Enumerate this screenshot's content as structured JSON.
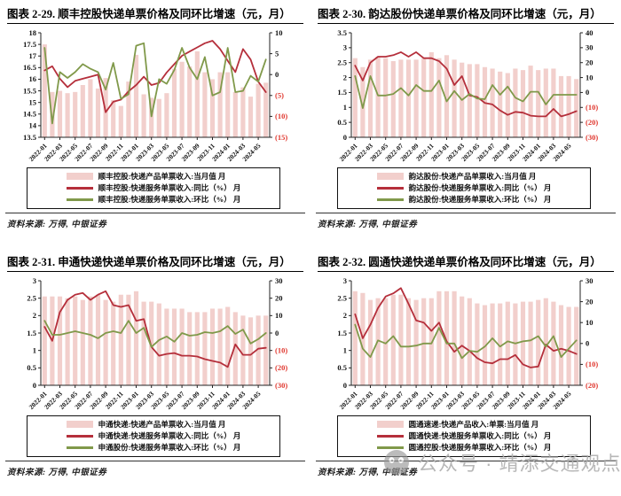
{
  "meta": {
    "page_type": "research-report-chart-grid",
    "colors": {
      "bar_fill": "#f2cfcc",
      "yoy_line": "#b52f3b",
      "mom_line": "#80994a",
      "negative_tick_label": "#e0372e",
      "axis": "#222222"
    }
  },
  "shared": {
    "x_start": "2022-01",
    "x_months": 30,
    "x_ticks": [
      {
        "i": 0,
        "t": "2022-01"
      },
      {
        "i": 2,
        "t": "2022-03"
      },
      {
        "i": 4,
        "t": "2022-05"
      },
      {
        "i": 6,
        "t": "2022-07"
      },
      {
        "i": 8,
        "t": "2022-09"
      },
      {
        "i": 10,
        "t": "2022-11"
      },
      {
        "i": 12,
        "t": "2023-01"
      },
      {
        "i": 14,
        "t": "2023-03"
      },
      {
        "i": 16,
        "t": "2023-05"
      },
      {
        "i": 18,
        "t": "2023-07"
      },
      {
        "i": 20,
        "t": "2023-09"
      },
      {
        "i": 22,
        "t": "2023-11"
      },
      {
        "i": 24,
        "t": "2024-01"
      },
      {
        "i": 26,
        "t": "2024-03"
      },
      {
        "i": 28,
        "t": "2024-05"
      }
    ]
  },
  "watermark": {
    "icon": "wechat-official-account-icon",
    "text": "公众号 · 靖添交通观点"
  },
  "chart_data": [
    {
      "type": "bar+line",
      "title": "图表 2-29. 顺丰控股快递单票价格及同环比增速（元，月）",
      "source": "资料来源: 万得, 中银证券",
      "x_start": "2022-01",
      "left_axis": {
        "min": 13.5,
        "max": 18,
        "ticks": [
          {
            "v": 13.5,
            "t": "13.5"
          },
          {
            "v": 14,
            "t": "14"
          },
          {
            "v": 14.5,
            "t": "14.5"
          },
          {
            "v": 15,
            "t": "15"
          },
          {
            "v": 15.5,
            "t": "15.5"
          },
          {
            "v": 16,
            "t": "16"
          },
          {
            "v": 16.5,
            "t": "16.5"
          },
          {
            "v": 17,
            "t": "17"
          },
          {
            "v": 17.5,
            "t": "17.5"
          },
          {
            "v": 18,
            "t": "18"
          }
        ]
      },
      "right_axis": {
        "min": -15,
        "max": 10,
        "ticks": [
          {
            "v": 10,
            "t": "10"
          },
          {
            "v": 5,
            "t": "5"
          },
          {
            "v": 0,
            "t": "0"
          },
          {
            "v": -5,
            "t": "(5)"
          },
          {
            "v": -10,
            "t": "(10)"
          },
          {
            "v": -15,
            "t": "(15)"
          }
        ]
      },
      "series": [
        {
          "name": "顺丰控股:快递产品单票收入:当月值 月",
          "type": "bar",
          "axis": "left",
          "color": "#f2cfcc",
          "values": [
            17.5,
            15.45,
            15.5,
            15.4,
            15.45,
            15.75,
            16.0,
            15.6,
            16.05,
            15.1,
            14.85,
            15.9,
            17.05,
            15.35,
            15.2,
            15.15,
            15.4,
            16.45,
            16.75,
            16.55,
            17.2,
            16.3,
            16.0,
            16.3,
            16.3,
            15.45,
            15.65,
            15.25,
            15.8,
            15.85
          ]
        },
        {
          "name": "顺丰控股:快递服务单票收入:同比（%） 月",
          "type": "line",
          "axis": "right",
          "color": "#b52f3b",
          "values": [
            1,
            2,
            -1,
            -3,
            -1.5,
            -1,
            -0.5,
            0,
            -9,
            -6.5,
            -6,
            -4,
            -2.5,
            -0.5,
            -2.5,
            -2,
            0.5,
            2.5,
            4.5,
            5.5,
            6.5,
            7.5,
            8.1,
            6.1,
            3.3,
            0.6,
            6.1,
            3.6,
            -1.7,
            -4.2
          ]
        },
        {
          "name": "顺丰控股:快递服务单票收入:环比（%） 月",
          "type": "line",
          "axis": "right",
          "color": "#80994a",
          "values": [
            6.4,
            -11.7,
            0.6,
            -0.8,
            0.6,
            2.5,
            1.4,
            0.6,
            -3.6,
            2.8,
            -5.8,
            -4.7,
            6.9,
            7.5,
            -10,
            -1.1,
            -2.2,
            1.1,
            6.4,
            1.7,
            -1.1,
            4.2,
            -5,
            -4.2,
            6.4,
            -4.2,
            -3.9,
            -0.3,
            -1.7,
            3.6
          ]
        }
      ]
    },
    {
      "type": "bar+line",
      "title": "图表 2-30. 韵达股份快递单票价格及同环比增速（元，月）",
      "source": "资料来源: 万得, 中银证券",
      "x_start": "2022-01",
      "left_axis": {
        "min": 0,
        "max": 3.5,
        "ticks": [
          {
            "v": 0,
            "t": "0"
          },
          {
            "v": 0.5,
            "t": "0.5"
          },
          {
            "v": 1,
            "t": "1"
          },
          {
            "v": 1.5,
            "t": "1.5"
          },
          {
            "v": 2,
            "t": "2"
          },
          {
            "v": 2.5,
            "t": "2.5"
          },
          {
            "v": 3,
            "t": "3"
          },
          {
            "v": 3.5,
            "t": "3.5"
          }
        ]
      },
      "right_axis": {
        "min": -30,
        "max": 40,
        "ticks": [
          {
            "v": 40,
            "t": "40"
          },
          {
            "v": 30,
            "t": "30"
          },
          {
            "v": 20,
            "t": "20"
          },
          {
            "v": 10,
            "t": "10"
          },
          {
            "v": 0,
            "t": "0"
          },
          {
            "v": -10,
            "t": "(10)"
          },
          {
            "v": -20,
            "t": "(20)"
          },
          {
            "v": -30,
            "t": "(30)"
          }
        ]
      },
      "series": [
        {
          "name": "韵达股份:快递产品单票收入:当月值 月",
          "type": "bar",
          "axis": "left",
          "color": "#f2cfcc",
          "values": [
            2.65,
            2.35,
            2.6,
            2.7,
            2.65,
            2.55,
            2.6,
            2.6,
            2.6,
            2.65,
            2.85,
            2.65,
            2.75,
            2.6,
            2.5,
            2.45,
            2.45,
            2.35,
            2.3,
            2.2,
            2.15,
            2.3,
            2.25,
            2.4,
            2.25,
            2.3,
            2.3,
            2.05,
            2.05,
            1.95
          ]
        },
        {
          "name": "韵达股份:快递服务单票收入:同比（%） 月",
          "type": "line",
          "axis": "right",
          "color": "#b52f3b",
          "values": [
            18,
            8,
            20,
            24,
            24,
            25,
            27,
            24,
            27,
            23,
            23,
            21,
            16,
            5,
            11,
            -2,
            -3,
            -7,
            -8,
            -12,
            -15,
            -13,
            -13.5,
            -15.5,
            -16,
            -16,
            -11,
            -16,
            -14.5,
            -12.5
          ]
        },
        {
          "name": "韵达股份:快递服务单票收入:环比（%） 月",
          "type": "line",
          "axis": "right",
          "color": "#80994a",
          "values": [
            11,
            -10.5,
            11,
            -2,
            -2,
            -1,
            3,
            -2,
            5,
            1,
            1,
            8,
            -6,
            1,
            -5,
            -1,
            -4,
            -4.5,
            5,
            -1.5,
            4,
            -3.5,
            -6,
            0.5,
            0.5,
            -8,
            -1.5,
            -1.5,
            -1.5,
            -1.5
          ]
        }
      ]
    },
    {
      "type": "bar+line",
      "title": "图表 2-31. 申通快递快递单票价格及同环比增速（元，月）",
      "source": "资料来源: 万得, 中银证券",
      "x_start": "2022-01",
      "left_axis": {
        "min": 0,
        "max": 3,
        "ticks": [
          {
            "v": 0,
            "t": "0"
          },
          {
            "v": 0.5,
            "t": "0.5"
          },
          {
            "v": 1,
            "t": "1"
          },
          {
            "v": 1.5,
            "t": "1.5"
          },
          {
            "v": 2,
            "t": "2"
          },
          {
            "v": 2.5,
            "t": "2.5"
          },
          {
            "v": 3,
            "t": "3"
          }
        ]
      },
      "right_axis": {
        "min": -30,
        "max": 30,
        "ticks": [
          {
            "v": 30,
            "t": "30"
          },
          {
            "v": 20,
            "t": "20"
          },
          {
            "v": 10,
            "t": "10"
          },
          {
            "v": 0,
            "t": "0"
          },
          {
            "v": -10,
            "t": "(10)"
          },
          {
            "v": -20,
            "t": "(20)"
          },
          {
            "v": -30,
            "t": "(30)"
          }
        ]
      },
      "series": [
        {
          "name": "申通快递:快递产品单票收入:当月值 月",
          "type": "bar",
          "axis": "left",
          "color": "#f2cfcc",
          "values": [
            2.55,
            2.55,
            2.55,
            2.5,
            2.55,
            2.45,
            2.55,
            2.6,
            2.45,
            2.4,
            2.6,
            2.6,
            2.7,
            2.4,
            2.4,
            2.35,
            2.2,
            2.2,
            2.2,
            2.1,
            2.1,
            2.1,
            2.2,
            2.2,
            2.25,
            2.1,
            2.0,
            1.95,
            2.0,
            2.0
          ]
        },
        {
          "name": "申通快递:快递服务单票收入:同比（%） 月",
          "type": "line",
          "axis": "right",
          "color": "#b52f3b",
          "values": [
            3.5,
            -4.5,
            12,
            19,
            22,
            23,
            19,
            22,
            24,
            16,
            15,
            16,
            7,
            8,
            -8,
            -13,
            -12,
            -11.5,
            -13,
            -13,
            -13.5,
            -15,
            -16,
            -17,
            -19.5,
            -6.5,
            -12.5,
            -12.5,
            -9,
            -8.5
          ]
        },
        {
          "name": "申通股份:快递服务单票收入:环比（%） 月",
          "type": "line",
          "axis": "right",
          "color": "#80994a",
          "values": [
            7,
            -1,
            -1,
            0,
            1,
            0,
            -1,
            -3,
            0,
            1,
            0,
            7,
            0,
            3,
            -8,
            -4,
            -2,
            -5,
            0,
            -1.5,
            -1,
            0.5,
            0,
            1,
            4,
            -0.5,
            2,
            -6,
            -3.5,
            0
          ]
        }
      ]
    },
    {
      "type": "bar+line",
      "title": "图表 2-32. 圆通快递快递单票价格及同环比增速（元，月）",
      "source": "资料来源: 万得, 中银证券",
      "x_start": "2022-01",
      "left_axis": {
        "min": 0,
        "max": 3,
        "ticks": [
          {
            "v": 0,
            "t": "0"
          },
          {
            "v": 0.5,
            "t": "0.5"
          },
          {
            "v": 1,
            "t": "1"
          },
          {
            "v": 1.5,
            "t": "1.5"
          },
          {
            "v": 2,
            "t": "2"
          },
          {
            "v": 2.5,
            "t": "2.5"
          },
          {
            "v": 3,
            "t": "3"
          }
        ]
      },
      "right_axis": {
        "min": -20,
        "max": 30,
        "ticks": [
          {
            "v": 30,
            "t": "30"
          },
          {
            "v": 20,
            "t": "20"
          },
          {
            "v": 10,
            "t": "10"
          },
          {
            "v": 0,
            "t": "0"
          },
          {
            "v": -10,
            "t": "(10)"
          },
          {
            "v": -20,
            "t": "(20)"
          }
        ]
      },
      "series": [
        {
          "name": "圆通速递:快递产品收入:单票:当月值 月",
          "type": "bar",
          "axis": "left",
          "color": "#f2cfcc",
          "values": [
            2.7,
            2.65,
            2.45,
            2.5,
            2.5,
            2.6,
            2.6,
            2.5,
            2.45,
            2.5,
            2.5,
            2.7,
            2.7,
            2.7,
            2.55,
            2.5,
            2.35,
            2.3,
            2.35,
            2.35,
            2.4,
            2.35,
            2.4,
            2.4,
            2.45,
            2.5,
            2.4,
            2.3,
            2.25,
            2.25
          ]
        },
        {
          "name": "圆通快递:快递服务单票收入:同比（%） 月",
          "type": "line",
          "axis": "right",
          "color": "#b52f3b",
          "values": [
            14,
            2.5,
            9,
            17,
            22.5,
            24,
            26.5,
            19,
            11,
            10,
            6,
            10,
            1,
            -4,
            -1,
            -3.5,
            -7,
            -9,
            -9.5,
            -7.5,
            -7.5,
            -5.5,
            -10,
            -11.5,
            -11,
            -0.5,
            -3.5,
            -2.5,
            -3.5,
            -5
          ]
        },
        {
          "name": "圆通控股:快递服务单票收入:环比（%） 月",
          "type": "line",
          "axis": "right",
          "color": "#80994a",
          "values": [
            9,
            -2.5,
            -6.5,
            1.5,
            0,
            3.5,
            -1.5,
            -1.5,
            -1,
            0,
            0,
            7.5,
            0,
            0,
            -7,
            -3.5,
            -4,
            -1.5,
            2.5,
            -1.5,
            1,
            0,
            1,
            1.5,
            3.5,
            -1.5,
            3.5,
            -6.5,
            -2.5,
            1.5
          ]
        }
      ]
    }
  ]
}
